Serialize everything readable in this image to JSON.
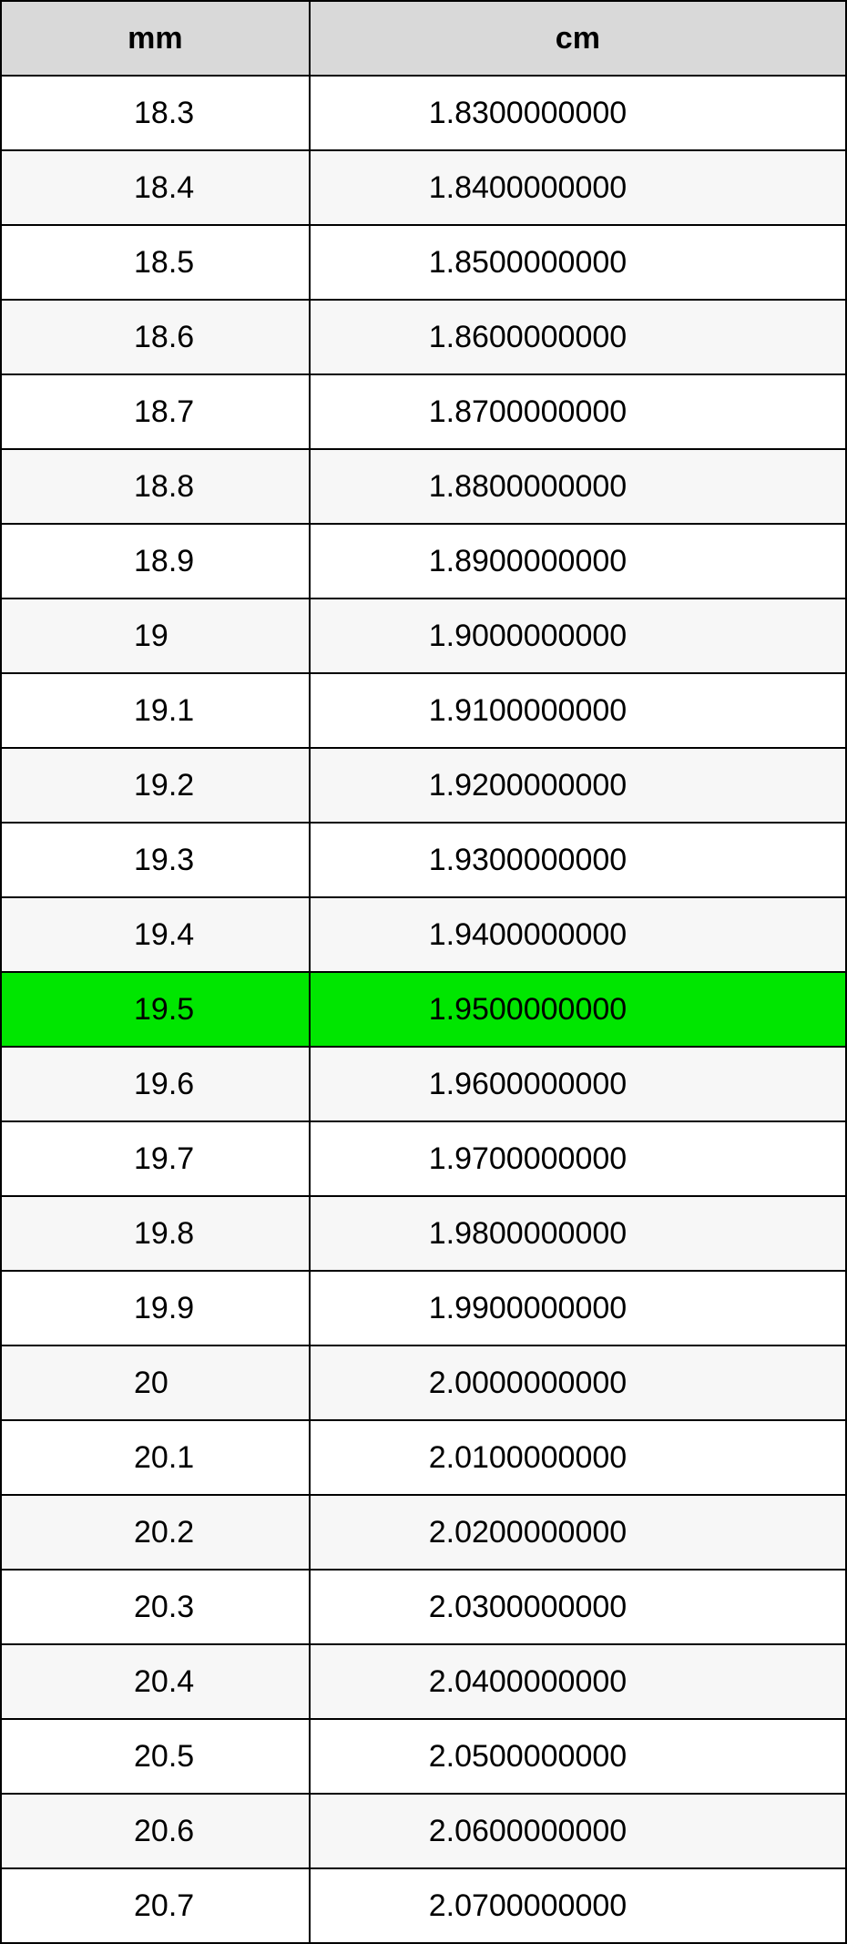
{
  "table": {
    "columns": [
      "mm",
      "cm"
    ],
    "header_bg": "#d9d9d9",
    "row_bg": "#ffffff",
    "alt_row_bg": "#f7f7f7",
    "highlight_bg": "#00e600",
    "border_color": "#000000",
    "font_family": "Arial",
    "font_size_pt": 26,
    "col_widths_pct": [
      36.5,
      63.5
    ],
    "highlight_index": 12,
    "rows": [
      {
        "mm": "18.3",
        "cm": "1.8300000000",
        "alt": false
      },
      {
        "mm": "18.4",
        "cm": "1.8400000000",
        "alt": true
      },
      {
        "mm": "18.5",
        "cm": "1.8500000000",
        "alt": false
      },
      {
        "mm": "18.6",
        "cm": "1.8600000000",
        "alt": true
      },
      {
        "mm": "18.7",
        "cm": "1.8700000000",
        "alt": false
      },
      {
        "mm": "18.8",
        "cm": "1.8800000000",
        "alt": true
      },
      {
        "mm": "18.9",
        "cm": "1.8900000000",
        "alt": false
      },
      {
        "mm": "19",
        "cm": "1.9000000000",
        "alt": true
      },
      {
        "mm": "19.1",
        "cm": "1.9100000000",
        "alt": false
      },
      {
        "mm": "19.2",
        "cm": "1.9200000000",
        "alt": true
      },
      {
        "mm": "19.3",
        "cm": "1.9300000000",
        "alt": false
      },
      {
        "mm": "19.4",
        "cm": "1.9400000000",
        "alt": true
      },
      {
        "mm": "19.5",
        "cm": "1.9500000000",
        "alt": false
      },
      {
        "mm": "19.6",
        "cm": "1.9600000000",
        "alt": true
      },
      {
        "mm": "19.7",
        "cm": "1.9700000000",
        "alt": false
      },
      {
        "mm": "19.8",
        "cm": "1.9800000000",
        "alt": true
      },
      {
        "mm": "19.9",
        "cm": "1.9900000000",
        "alt": false
      },
      {
        "mm": "20",
        "cm": "2.0000000000",
        "alt": true
      },
      {
        "mm": "20.1",
        "cm": "2.0100000000",
        "alt": false
      },
      {
        "mm": "20.2",
        "cm": "2.0200000000",
        "alt": true
      },
      {
        "mm": "20.3",
        "cm": "2.0300000000",
        "alt": false
      },
      {
        "mm": "20.4",
        "cm": "2.0400000000",
        "alt": true
      },
      {
        "mm": "20.5",
        "cm": "2.0500000000",
        "alt": false
      },
      {
        "mm": "20.6",
        "cm": "2.0600000000",
        "alt": true
      },
      {
        "mm": "20.7",
        "cm": "2.0700000000",
        "alt": false
      }
    ]
  }
}
